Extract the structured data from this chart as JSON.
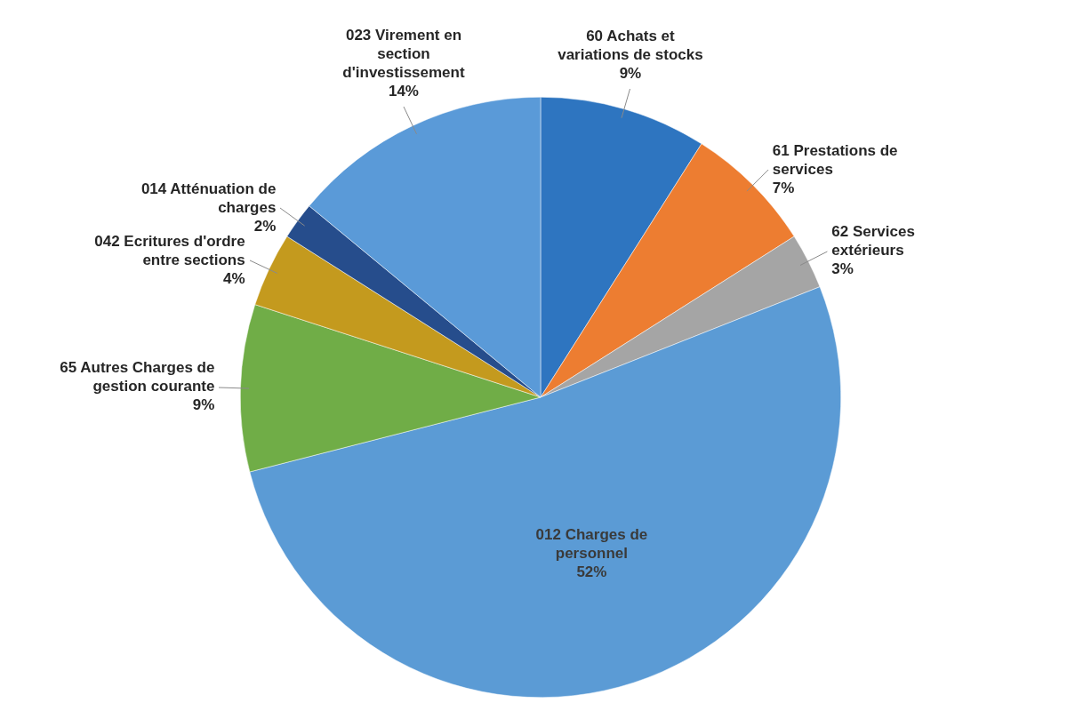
{
  "chart_data": {
    "type": "pie",
    "categories": [
      "60 Achats et variations de stocks",
      "61 Prestations de services",
      "62 Services extérieurs",
      "012 Charges de personnel",
      "65 Autres Charges de gestion courante",
      "042 Ecritures d'ordre entre sections",
      "014  Atténuation de charges",
      "023 Virement en section d'investissement"
    ],
    "values": [
      9,
      7,
      3,
      52,
      9,
      4,
      2,
      14
    ],
    "value_labels": [
      "9%",
      "7%",
      "3%",
      "52%",
      "9%",
      "4%",
      "2%",
      "14%"
    ],
    "colors": [
      "#2e75c0",
      "#ed7d31",
      "#a5a5a5",
      "#5b9bd5",
      "#70ad47",
      "#c49a1e",
      "#264d8c",
      "#5a9ad8"
    ],
    "legend": false
  }
}
